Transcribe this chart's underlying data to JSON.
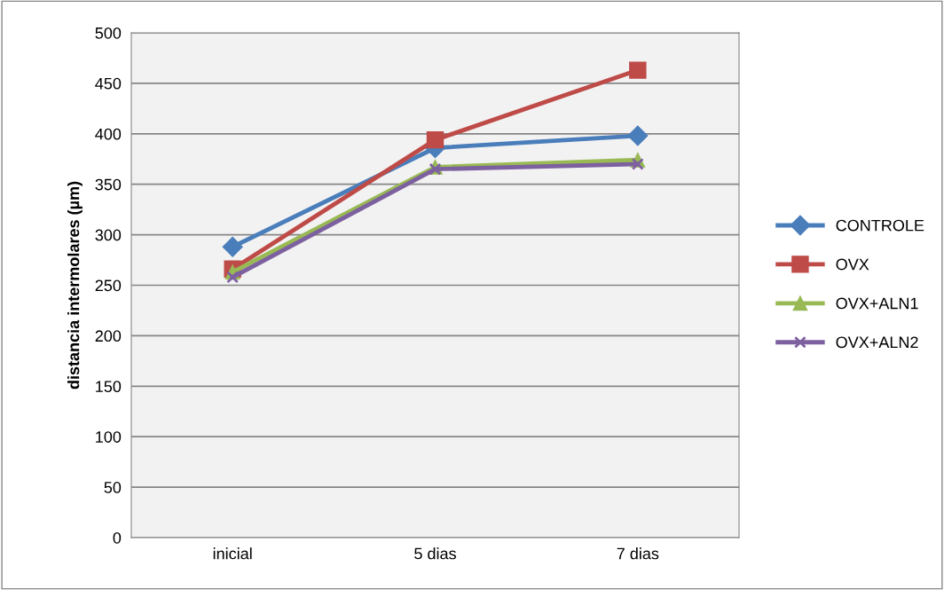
{
  "chart_data": {
    "type": "line",
    "ylabel": "distancia intermolares (µm)",
    "categories": [
      "inicial",
      "5 dias",
      "7 dias"
    ],
    "series": [
      {
        "name": "CONTROLE",
        "color": "#4a7ebb",
        "marker": "diamond",
        "values": [
          288,
          386,
          398
        ]
      },
      {
        "name": "OVX",
        "color": "#be4b48",
        "marker": "square",
        "values": [
          266,
          394,
          463
        ]
      },
      {
        "name": "OVX+ALN1",
        "color": "#98b954",
        "marker": "triangle",
        "values": [
          263,
          367,
          374
        ]
      },
      {
        "name": "OVX+ALN2",
        "color": "#7d60a0",
        "marker": "cross",
        "values": [
          258,
          365,
          370
        ]
      }
    ],
    "ylim": [
      0,
      500
    ],
    "yticks": [
      0,
      50,
      100,
      150,
      200,
      250,
      300,
      350,
      400,
      450,
      500
    ],
    "grid": "y",
    "legend": "right",
    "line_style": "solid"
  }
}
